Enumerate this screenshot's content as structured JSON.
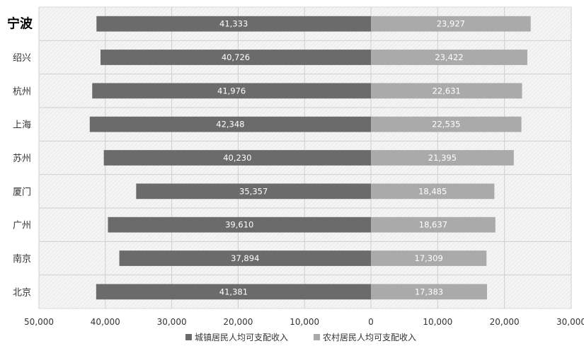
{
  "chart_data": {
    "type": "bar",
    "orientation": "horizontal-diverging",
    "categories": [
      "宁波",
      "绍兴",
      "杭州",
      "上海",
      "苏州",
      "厦门",
      "广州",
      "南京",
      "北京"
    ],
    "highlight_category": "宁波",
    "series": [
      {
        "name": "城镇居民人均可支配收入",
        "color": "#6b6b6b",
        "direction": "left",
        "values": [
          41333,
          40726,
          41976,
          42348,
          40230,
          35357,
          39610,
          37894,
          41381
        ],
        "labels": [
          "41,333",
          "40,726",
          "41,976",
          "42,348",
          "40,230",
          "35,357",
          "39,610",
          "37,894",
          "41,381"
        ]
      },
      {
        "name": "农村居民人均可支配收入",
        "color": "#aaaaaa",
        "direction": "right",
        "values": [
          23927,
          23422,
          22631,
          22535,
          21395,
          18485,
          18637,
          17309,
          17383
        ],
        "labels": [
          "23,927",
          "23,422",
          "22,631",
          "22,535",
          "21,395",
          "18,485",
          "18,637",
          "17,309",
          "17,383"
        ]
      }
    ],
    "xlim_left": [
      0,
      50000
    ],
    "xlim_right": [
      0,
      30000
    ],
    "x_ticks": [
      {
        "value": -50000,
        "label": "50,000"
      },
      {
        "value": -40000,
        "label": "40,000"
      },
      {
        "value": -30000,
        "label": "30,000"
      },
      {
        "value": -20000,
        "label": "20,000"
      },
      {
        "value": -10000,
        "label": "10,000"
      },
      {
        "value": 0,
        "label": "0"
      },
      {
        "value": 10000,
        "label": "10,000"
      },
      {
        "value": 20000,
        "label": "20,000"
      },
      {
        "value": 30000,
        "label": "30,000"
      }
    ],
    "grid": true,
    "legend_position": "bottom"
  }
}
